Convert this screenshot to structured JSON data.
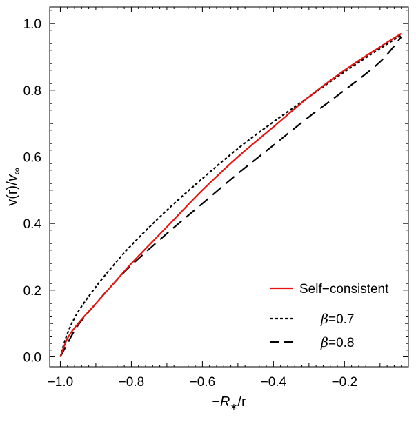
{
  "chart_data": {
    "type": "line",
    "xlabel": "−R∗/r",
    "ylabel": "v(r)/v∞",
    "xlim": [
      -1.03,
      -0.02
    ],
    "ylim": [
      -0.03,
      1.05
    ],
    "x_ticks": [
      -1.0,
      -0.8,
      -0.6,
      -0.4,
      -0.2
    ],
    "x_tick_labels": [
      "−1.0",
      "−0.8",
      "−0.6",
      "−0.4",
      "−0.2"
    ],
    "y_ticks": [
      0.0,
      0.2,
      0.4,
      0.6,
      0.8,
      1.0
    ],
    "y_tick_labels": [
      "0.0",
      "0.2",
      "0.4",
      "0.6",
      "0.8",
      "1.0"
    ],
    "grid": false,
    "legend_position": "bottom-right",
    "series": [
      {
        "name": "Self−consistent",
        "color": "#e8130f",
        "dash": "solid",
        "x": [
          -1.0,
          -0.98,
          -0.95,
          -0.9,
          -0.85,
          -0.8,
          -0.7,
          -0.6,
          -0.5,
          -0.4,
          -0.3,
          -0.2,
          -0.1,
          -0.04
        ],
        "y": [
          0.0,
          0.055,
          0.1,
          0.16,
          0.22,
          0.28,
          0.39,
          0.5,
          0.6,
          0.69,
          0.78,
          0.86,
          0.93,
          0.97
        ]
      },
      {
        "name": "β=0.7",
        "color": "#000000",
        "dash": "short-dash",
        "x": [
          -1.0,
          -0.98,
          -0.95,
          -0.9,
          -0.85,
          -0.8,
          -0.7,
          -0.6,
          -0.5,
          -0.4,
          -0.3,
          -0.2,
          -0.1,
          -0.04
        ],
        "y": [
          0.0,
          0.07,
          0.135,
          0.21,
          0.275,
          0.335,
          0.44,
          0.535,
          0.625,
          0.705,
          0.78,
          0.855,
          0.925,
          0.965
        ]
      },
      {
        "name": "β=0.8",
        "color": "#000000",
        "dash": "long-dash",
        "x": [
          -1.0,
          -0.98,
          -0.95,
          -0.9,
          -0.85,
          -0.8,
          -0.7,
          -0.6,
          -0.5,
          -0.4,
          -0.3,
          -0.2,
          -0.1,
          -0.04
        ],
        "y": [
          0.0,
          0.04,
          0.095,
          0.16,
          0.22,
          0.275,
          0.37,
          0.46,
          0.55,
          0.635,
          0.72,
          0.8,
          0.885,
          0.96
        ]
      }
    ]
  }
}
